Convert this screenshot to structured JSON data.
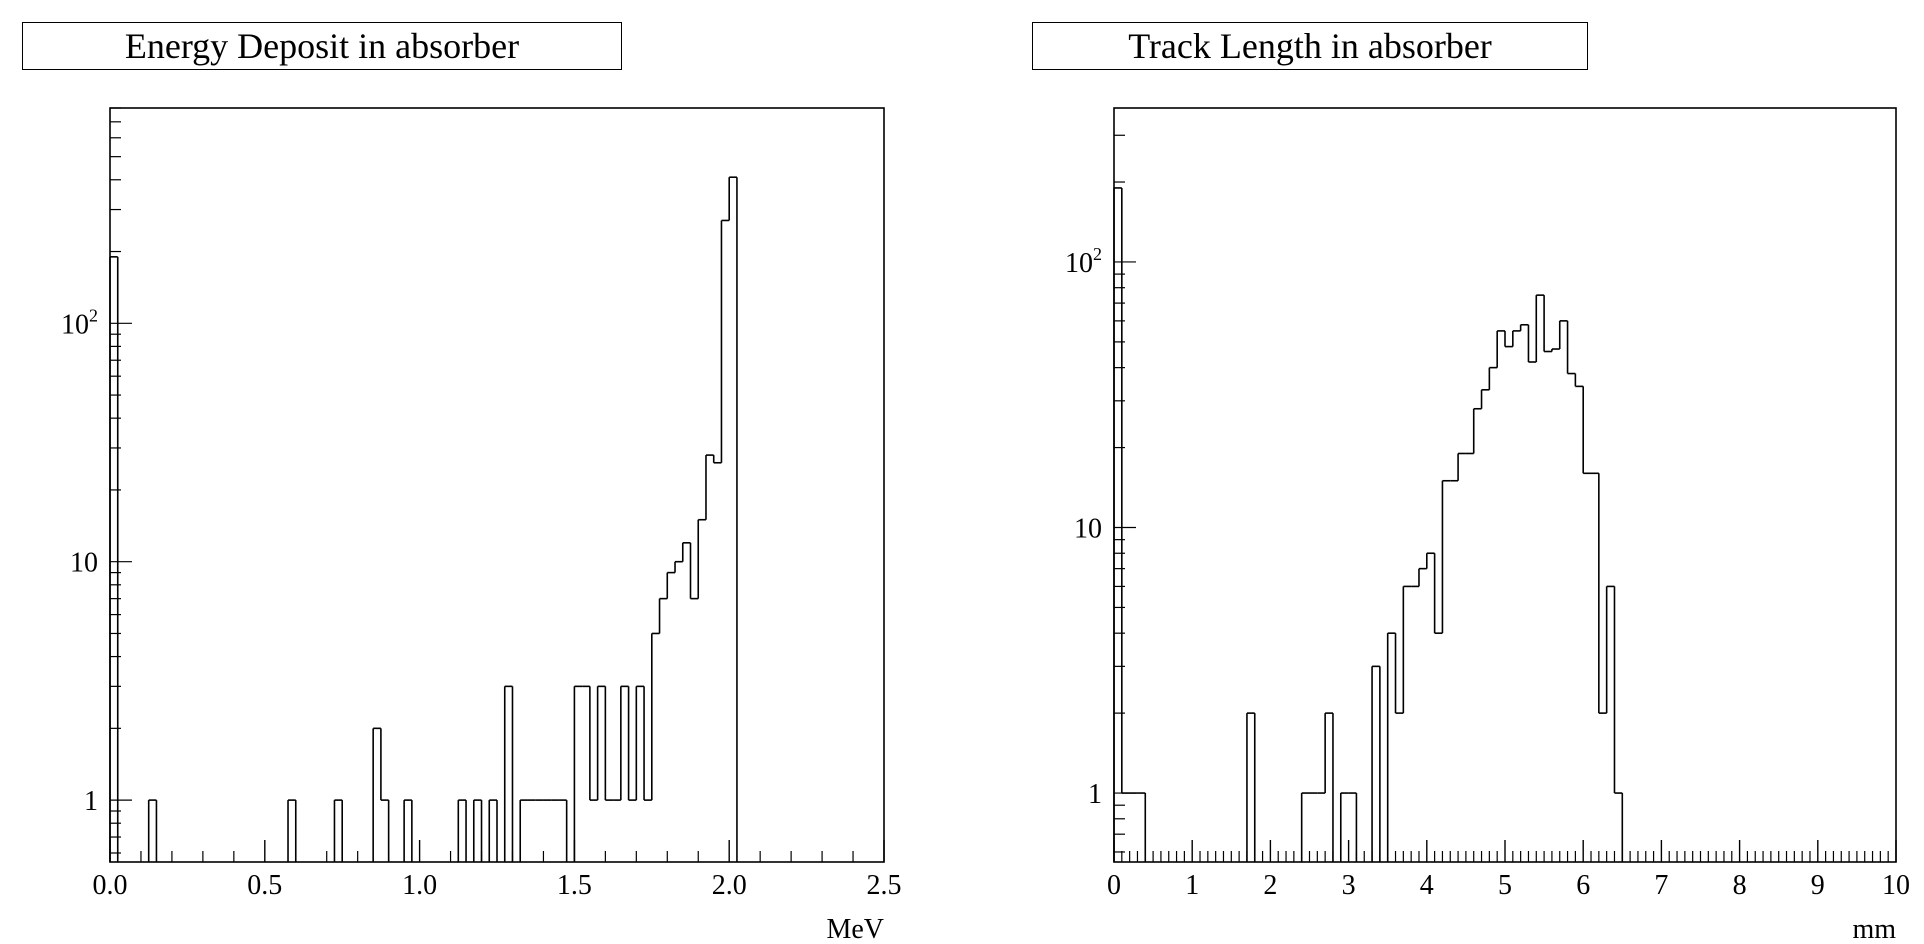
{
  "chart_data": [
    {
      "type": "histogram",
      "title": "Energy Deposit in absorber",
      "xlabel": "MeV",
      "ylabel": "",
      "xlim": [
        0.0,
        2.5
      ],
      "ylim": [
        0.55,
        800
      ],
      "yscale": "log",
      "grid": false,
      "legend": "none",
      "xticks": [
        "0.0",
        "0.5",
        "1.0",
        "1.5",
        "2.0",
        "2.5"
      ],
      "yticks": [
        {
          "value": 1,
          "label": "1"
        },
        {
          "value": 10,
          "label": "10"
        },
        {
          "value": 100,
          "label": "10",
          "sup": "2"
        }
      ],
      "bin_width": 0.025,
      "bins": [
        {
          "x": 0.0,
          "y": 190
        },
        {
          "x": 0.125,
          "y": 1
        },
        {
          "x": 0.575,
          "y": 1
        },
        {
          "x": 0.725,
          "y": 1
        },
        {
          "x": 0.85,
          "y": 2
        },
        {
          "x": 0.875,
          "y": 1
        },
        {
          "x": 0.95,
          "y": 1
        },
        {
          "x": 1.125,
          "y": 1
        },
        {
          "x": 1.175,
          "y": 1
        },
        {
          "x": 1.225,
          "y": 1
        },
        {
          "x": 1.275,
          "y": 3
        },
        {
          "x": 1.325,
          "y": 1
        },
        {
          "x": 1.35,
          "y": 1
        },
        {
          "x": 1.375,
          "y": 1
        },
        {
          "x": 1.4,
          "y": 1
        },
        {
          "x": 1.425,
          "y": 1
        },
        {
          "x": 1.45,
          "y": 1
        },
        {
          "x": 1.5,
          "y": 3
        },
        {
          "x": 1.525,
          "y": 3
        },
        {
          "x": 1.55,
          "y": 1
        },
        {
          "x": 1.575,
          "y": 3
        },
        {
          "x": 1.6,
          "y": 1
        },
        {
          "x": 1.625,
          "y": 1
        },
        {
          "x": 1.65,
          "y": 3
        },
        {
          "x": 1.675,
          "y": 1
        },
        {
          "x": 1.7,
          "y": 3
        },
        {
          "x": 1.725,
          "y": 1
        },
        {
          "x": 1.75,
          "y": 5
        },
        {
          "x": 1.775,
          "y": 7
        },
        {
          "x": 1.8,
          "y": 9
        },
        {
          "x": 1.825,
          "y": 10
        },
        {
          "x": 1.85,
          "y": 12
        },
        {
          "x": 1.875,
          "y": 7
        },
        {
          "x": 1.9,
          "y": 15
        },
        {
          "x": 1.925,
          "y": 28
        },
        {
          "x": 1.95,
          "y": 26
        },
        {
          "x": 1.975,
          "y": 270
        },
        {
          "x": 2.0,
          "y": 410
        }
      ]
    },
    {
      "type": "histogram",
      "title": "Track Length in absorber",
      "xlabel": "mm",
      "ylabel": "",
      "xlim": [
        0,
        10
      ],
      "ylim": [
        0.55,
        380
      ],
      "yscale": "log",
      "grid": false,
      "legend": "none",
      "xticks": [
        "0",
        "1",
        "2",
        "3",
        "4",
        "5",
        "6",
        "7",
        "8",
        "9",
        "10"
      ],
      "yticks": [
        {
          "value": 1,
          "label": "1"
        },
        {
          "value": 10,
          "label": "10"
        },
        {
          "value": 100,
          "label": "10",
          "sup": "2"
        }
      ],
      "bin_width": 0.1,
      "bins": [
        {
          "x": 0.0,
          "y": 190
        },
        {
          "x": 0.1,
          "y": 1
        },
        {
          "x": 0.2,
          "y": 1
        },
        {
          "x": 0.3,
          "y": 1
        },
        {
          "x": 1.7,
          "y": 2
        },
        {
          "x": 2.4,
          "y": 1
        },
        {
          "x": 2.5,
          "y": 1
        },
        {
          "x": 2.6,
          "y": 1
        },
        {
          "x": 2.7,
          "y": 2
        },
        {
          "x": 2.9,
          "y": 1
        },
        {
          "x": 3.0,
          "y": 1
        },
        {
          "x": 3.3,
          "y": 3
        },
        {
          "x": 3.5,
          "y": 4
        },
        {
          "x": 3.6,
          "y": 2
        },
        {
          "x": 3.7,
          "y": 6
        },
        {
          "x": 3.8,
          "y": 6
        },
        {
          "x": 3.9,
          "y": 7
        },
        {
          "x": 4.0,
          "y": 8
        },
        {
          "x": 4.1,
          "y": 4
        },
        {
          "x": 4.2,
          "y": 15
        },
        {
          "x": 4.3,
          "y": 15
        },
        {
          "x": 4.4,
          "y": 19
        },
        {
          "x": 4.5,
          "y": 19
        },
        {
          "x": 4.6,
          "y": 28
        },
        {
          "x": 4.7,
          "y": 33
        },
        {
          "x": 4.8,
          "y": 40
        },
        {
          "x": 4.9,
          "y": 55
        },
        {
          "x": 5.0,
          "y": 48
        },
        {
          "x": 5.1,
          "y": 55
        },
        {
          "x": 5.2,
          "y": 58
        },
        {
          "x": 5.3,
          "y": 42
        },
        {
          "x": 5.4,
          "y": 75
        },
        {
          "x": 5.5,
          "y": 46
        },
        {
          "x": 5.6,
          "y": 47
        },
        {
          "x": 5.7,
          "y": 60
        },
        {
          "x": 5.8,
          "y": 38
        },
        {
          "x": 5.9,
          "y": 34
        },
        {
          "x": 6.0,
          "y": 16
        },
        {
          "x": 6.1,
          "y": 16
        },
        {
          "x": 6.2,
          "y": 2
        },
        {
          "x": 6.3,
          "y": 6
        },
        {
          "x": 6.4,
          "y": 1
        }
      ]
    }
  ]
}
